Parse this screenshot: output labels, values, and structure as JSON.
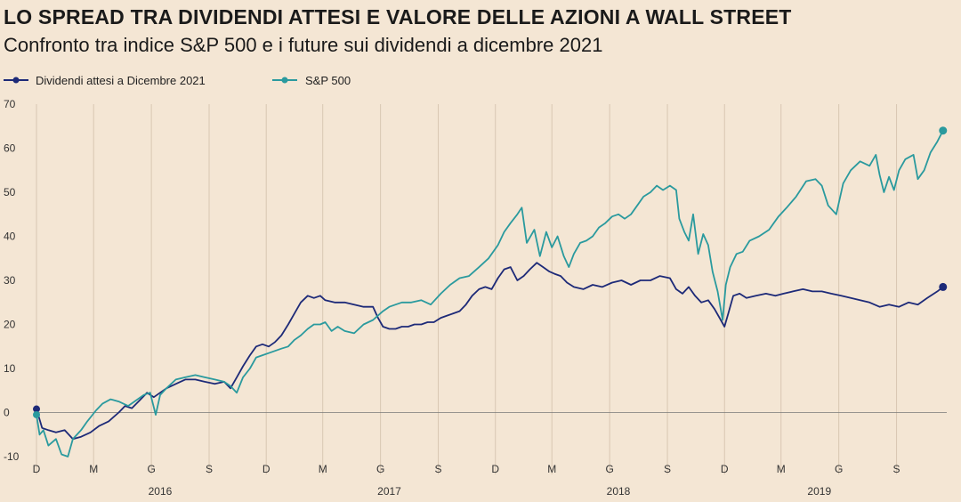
{
  "chart_data": {
    "type": "line",
    "title": "LO SPREAD TRA DIVIDENDI ATTESI E VALORE DELLE AZIONI A WALL STREET",
    "subtitle": "Confronto tra indice S&P 500 e i future sui dividendi a dicembre 2021",
    "ylim": [
      -10,
      70
    ],
    "y_ticks": [
      -10,
      0,
      10,
      20,
      30,
      40,
      50,
      60,
      70
    ],
    "x_range": [
      "2015-12-01",
      "2019-11-20"
    ],
    "x_ticks": [
      {
        "date": "2015-12-01",
        "label": "D"
      },
      {
        "date": "2016-03-01",
        "label": "M"
      },
      {
        "date": "2016-06-01",
        "label": "G"
      },
      {
        "date": "2016-09-01",
        "label": "S"
      },
      {
        "date": "2016-12-01",
        "label": "D"
      },
      {
        "date": "2017-03-01",
        "label": "M"
      },
      {
        "date": "2017-06-01",
        "label": "G"
      },
      {
        "date": "2017-09-01",
        "label": "S"
      },
      {
        "date": "2017-12-01",
        "label": "D"
      },
      {
        "date": "2018-03-01",
        "label": "M"
      },
      {
        "date": "2018-06-01",
        "label": "G"
      },
      {
        "date": "2018-09-01",
        "label": "S"
      },
      {
        "date": "2018-12-01",
        "label": "D"
      },
      {
        "date": "2019-03-01",
        "label": "M"
      },
      {
        "date": "2019-06-01",
        "label": "G"
      },
      {
        "date": "2019-09-01",
        "label": "S"
      }
    ],
    "year_labels": [
      {
        "date": "2016-06-15",
        "label": "2016"
      },
      {
        "date": "2017-06-15",
        "label": "2017"
      },
      {
        "date": "2018-06-15",
        "label": "2018"
      },
      {
        "date": "2019-05-01",
        "label": "2019"
      }
    ],
    "grid": "vertical",
    "legend_position": "top-left",
    "series": [
      {
        "name": "Dividendi attesi a Dicembre 2021",
        "color": "#1d2a78",
        "points": [
          [
            "2015-12-01",
            0.8
          ],
          [
            "2015-12-10",
            -3.5
          ],
          [
            "2015-12-20",
            -4.0
          ],
          [
            "2016-01-01",
            -4.5
          ],
          [
            "2016-01-15",
            -4.0
          ],
          [
            "2016-01-28",
            -6.0
          ],
          [
            "2016-02-10",
            -5.5
          ],
          [
            "2016-02-25",
            -4.5
          ],
          [
            "2016-03-10",
            -3.0
          ],
          [
            "2016-03-25",
            -2.0
          ],
          [
            "2016-04-10",
            0.0
          ],
          [
            "2016-04-20",
            1.5
          ],
          [
            "2016-05-01",
            1.0
          ],
          [
            "2016-05-15",
            3.0
          ],
          [
            "2016-05-25",
            4.5
          ],
          [
            "2016-06-05",
            3.5
          ],
          [
            "2016-06-15",
            4.5
          ],
          [
            "2016-06-25",
            5.5
          ],
          [
            "2016-07-10",
            6.5
          ],
          [
            "2016-07-25",
            7.5
          ],
          [
            "2016-08-10",
            7.5
          ],
          [
            "2016-08-25",
            7.0
          ],
          [
            "2016-09-10",
            6.5
          ],
          [
            "2016-09-25",
            7.0
          ],
          [
            "2016-10-05",
            5.5
          ],
          [
            "2016-10-15",
            8.0
          ],
          [
            "2016-10-25",
            10.5
          ],
          [
            "2016-11-05",
            13.0
          ],
          [
            "2016-11-15",
            15.0
          ],
          [
            "2016-11-25",
            15.5
          ],
          [
            "2016-12-05",
            15.0
          ],
          [
            "2016-12-15",
            16.0
          ],
          [
            "2016-12-25",
            17.5
          ],
          [
            "2017-01-05",
            20.0
          ],
          [
            "2017-01-15",
            22.5
          ],
          [
            "2017-01-25",
            25.0
          ],
          [
            "2017-02-05",
            26.5
          ],
          [
            "2017-02-15",
            26.0
          ],
          [
            "2017-02-25",
            26.5
          ],
          [
            "2017-03-05",
            25.5
          ],
          [
            "2017-03-20",
            25.0
          ],
          [
            "2017-04-05",
            25.0
          ],
          [
            "2017-04-20",
            24.5
          ],
          [
            "2017-05-05",
            24.0
          ],
          [
            "2017-05-20",
            24.0
          ],
          [
            "2017-05-28",
            21.5
          ],
          [
            "2017-06-05",
            19.5
          ],
          [
            "2017-06-15",
            19.0
          ],
          [
            "2017-06-25",
            19.0
          ],
          [
            "2017-07-05",
            19.5
          ],
          [
            "2017-07-15",
            19.5
          ],
          [
            "2017-07-25",
            20.0
          ],
          [
            "2017-08-05",
            20.0
          ],
          [
            "2017-08-15",
            20.5
          ],
          [
            "2017-08-25",
            20.5
          ],
          [
            "2017-09-05",
            21.5
          ],
          [
            "2017-09-15",
            22.0
          ],
          [
            "2017-09-25",
            22.5
          ],
          [
            "2017-10-05",
            23.0
          ],
          [
            "2017-10-15",
            24.5
          ],
          [
            "2017-10-25",
            26.5
          ],
          [
            "2017-11-05",
            28.0
          ],
          [
            "2017-11-15",
            28.5
          ],
          [
            "2017-11-25",
            28.0
          ],
          [
            "2017-12-05",
            30.5
          ],
          [
            "2017-12-15",
            32.5
          ],
          [
            "2017-12-25",
            33.0
          ],
          [
            "2018-01-05",
            30.0
          ],
          [
            "2018-01-15",
            31.0
          ],
          [
            "2018-01-25",
            32.5
          ],
          [
            "2018-02-05",
            34.0
          ],
          [
            "2018-02-15",
            33.0
          ],
          [
            "2018-02-25",
            32.0
          ],
          [
            "2018-03-05",
            31.5
          ],
          [
            "2018-03-15",
            31.0
          ],
          [
            "2018-03-25",
            29.5
          ],
          [
            "2018-04-05",
            28.5
          ],
          [
            "2018-04-20",
            28.0
          ],
          [
            "2018-05-05",
            29.0
          ],
          [
            "2018-05-20",
            28.5
          ],
          [
            "2018-06-05",
            29.5
          ],
          [
            "2018-06-20",
            30.0
          ],
          [
            "2018-07-05",
            29.0
          ],
          [
            "2018-07-20",
            30.0
          ],
          [
            "2018-08-05",
            30.0
          ],
          [
            "2018-08-20",
            31.0
          ],
          [
            "2018-09-05",
            30.5
          ],
          [
            "2018-09-15",
            28.0
          ],
          [
            "2018-09-25",
            27.0
          ],
          [
            "2018-10-05",
            28.5
          ],
          [
            "2018-10-15",
            26.5
          ],
          [
            "2018-10-25",
            25.0
          ],
          [
            "2018-11-05",
            25.5
          ],
          [
            "2018-11-15",
            23.5
          ],
          [
            "2018-11-25",
            21.0
          ],
          [
            "2018-12-01",
            19.5
          ],
          [
            "2018-12-08",
            23.0
          ],
          [
            "2018-12-15",
            26.5
          ],
          [
            "2018-12-25",
            27.0
          ],
          [
            "2019-01-05",
            26.0
          ],
          [
            "2019-01-20",
            26.5
          ],
          [
            "2019-02-05",
            27.0
          ],
          [
            "2019-02-20",
            26.5
          ],
          [
            "2019-03-05",
            27.0
          ],
          [
            "2019-03-20",
            27.5
          ],
          [
            "2019-04-05",
            28.0
          ],
          [
            "2019-04-20",
            27.5
          ],
          [
            "2019-05-05",
            27.5
          ],
          [
            "2019-05-20",
            27.0
          ],
          [
            "2019-06-05",
            26.5
          ],
          [
            "2019-06-20",
            26.0
          ],
          [
            "2019-07-05",
            25.5
          ],
          [
            "2019-07-20",
            25.0
          ],
          [
            "2019-08-05",
            24.0
          ],
          [
            "2019-08-20",
            24.5
          ],
          [
            "2019-09-05",
            24.0
          ],
          [
            "2019-09-20",
            25.0
          ],
          [
            "2019-10-05",
            24.5
          ],
          [
            "2019-10-20",
            26.0
          ],
          [
            "2019-11-05",
            27.5
          ],
          [
            "2019-11-14",
            28.5
          ]
        ]
      },
      {
        "name": "S&P 500",
        "color": "#2a9a9e",
        "points": [
          [
            "2015-12-01",
            -0.5
          ],
          [
            "2015-12-06",
            -5.0
          ],
          [
            "2015-12-12",
            -4.0
          ],
          [
            "2015-12-20",
            -7.5
          ],
          [
            "2016-01-01",
            -6.0
          ],
          [
            "2016-01-10",
            -9.5
          ],
          [
            "2016-01-20",
            -10.0
          ],
          [
            "2016-01-28",
            -6.0
          ],
          [
            "2016-02-10",
            -4.0
          ],
          [
            "2016-02-20",
            -2.0
          ],
          [
            "2016-03-05",
            0.5
          ],
          [
            "2016-03-15",
            2.0
          ],
          [
            "2016-03-28",
            3.0
          ],
          [
            "2016-04-10",
            2.5
          ],
          [
            "2016-04-25",
            1.5
          ],
          [
            "2016-05-05",
            2.5
          ],
          [
            "2016-05-20",
            4.0
          ],
          [
            "2016-05-30",
            4.5
          ],
          [
            "2016-06-08",
            -0.5
          ],
          [
            "2016-06-15",
            4.0
          ],
          [
            "2016-06-25",
            5.5
          ],
          [
            "2016-07-10",
            7.5
          ],
          [
            "2016-07-25",
            8.0
          ],
          [
            "2016-08-10",
            8.5
          ],
          [
            "2016-08-25",
            8.0
          ],
          [
            "2016-09-10",
            7.5
          ],
          [
            "2016-09-25",
            7.0
          ],
          [
            "2016-10-05",
            6.0
          ],
          [
            "2016-10-15",
            4.5
          ],
          [
            "2016-10-25",
            8.0
          ],
          [
            "2016-11-05",
            10.0
          ],
          [
            "2016-11-15",
            12.5
          ],
          [
            "2016-11-25",
            13.0
          ],
          [
            "2016-12-05",
            13.5
          ],
          [
            "2016-12-15",
            14.0
          ],
          [
            "2016-12-25",
            14.5
          ],
          [
            "2017-01-05",
            15.0
          ],
          [
            "2017-01-15",
            16.5
          ],
          [
            "2017-01-25",
            17.5
          ],
          [
            "2017-02-05",
            19.0
          ],
          [
            "2017-02-15",
            20.0
          ],
          [
            "2017-02-25",
            20.0
          ],
          [
            "2017-03-05",
            20.5
          ],
          [
            "2017-03-15",
            18.5
          ],
          [
            "2017-03-25",
            19.5
          ],
          [
            "2017-04-05",
            18.5
          ],
          [
            "2017-04-20",
            18.0
          ],
          [
            "2017-05-05",
            20.0
          ],
          [
            "2017-05-20",
            21.0
          ],
          [
            "2017-06-05",
            23.0
          ],
          [
            "2017-06-15",
            24.0
          ],
          [
            "2017-06-25",
            24.5
          ],
          [
            "2017-07-05",
            25.0
          ],
          [
            "2017-07-20",
            25.0
          ],
          [
            "2017-08-05",
            25.5
          ],
          [
            "2017-08-20",
            24.5
          ],
          [
            "2017-09-05",
            27.0
          ],
          [
            "2017-09-20",
            29.0
          ],
          [
            "2017-10-05",
            30.5
          ],
          [
            "2017-10-20",
            31.0
          ],
          [
            "2017-11-05",
            33.0
          ],
          [
            "2017-11-20",
            35.0
          ],
          [
            "2017-12-05",
            38.0
          ],
          [
            "2017-12-15",
            41.0
          ],
          [
            "2017-12-25",
            43.0
          ],
          [
            "2018-01-05",
            45.0
          ],
          [
            "2018-01-12",
            46.5
          ],
          [
            "2018-01-20",
            38.5
          ],
          [
            "2018-02-01",
            41.5
          ],
          [
            "2018-02-10",
            35.5
          ],
          [
            "2018-02-20",
            41.0
          ],
          [
            "2018-03-01",
            37.5
          ],
          [
            "2018-03-10",
            40.0
          ],
          [
            "2018-03-20",
            35.5
          ],
          [
            "2018-03-28",
            33.0
          ],
          [
            "2018-04-05",
            36.0
          ],
          [
            "2018-04-15",
            38.5
          ],
          [
            "2018-04-25",
            39.0
          ],
          [
            "2018-05-05",
            40.0
          ],
          [
            "2018-05-15",
            42.0
          ],
          [
            "2018-05-25",
            43.0
          ],
          [
            "2018-06-05",
            44.5
          ],
          [
            "2018-06-15",
            45.0
          ],
          [
            "2018-06-25",
            44.0
          ],
          [
            "2018-07-05",
            45.0
          ],
          [
            "2018-07-15",
            47.0
          ],
          [
            "2018-07-25",
            49.0
          ],
          [
            "2018-08-05",
            50.0
          ],
          [
            "2018-08-15",
            51.5
          ],
          [
            "2018-08-25",
            50.5
          ],
          [
            "2018-09-05",
            51.5
          ],
          [
            "2018-09-15",
            50.5
          ],
          [
            "2018-09-20",
            44.0
          ],
          [
            "2018-09-28",
            41.0
          ],
          [
            "2018-10-05",
            39.0
          ],
          [
            "2018-10-12",
            45.0
          ],
          [
            "2018-10-20",
            36.0
          ],
          [
            "2018-10-28",
            40.5
          ],
          [
            "2018-11-05",
            38.0
          ],
          [
            "2018-11-12",
            32.0
          ],
          [
            "2018-11-20",
            27.5
          ],
          [
            "2018-11-28",
            21.0
          ],
          [
            "2018-12-03",
            29.0
          ],
          [
            "2018-12-10",
            33.0
          ],
          [
            "2018-12-20",
            36.0
          ],
          [
            "2018-12-30",
            36.5
          ],
          [
            "2019-01-10",
            39.0
          ],
          [
            "2019-01-25",
            40.0
          ],
          [
            "2019-02-10",
            41.5
          ],
          [
            "2019-02-25",
            44.5
          ],
          [
            "2019-03-10",
            46.5
          ],
          [
            "2019-03-25",
            49.0
          ],
          [
            "2019-04-10",
            52.5
          ],
          [
            "2019-04-25",
            53.0
          ],
          [
            "2019-05-05",
            51.5
          ],
          [
            "2019-05-15",
            47.0
          ],
          [
            "2019-05-28",
            45.0
          ],
          [
            "2019-06-08",
            52.0
          ],
          [
            "2019-06-20",
            55.0
          ],
          [
            "2019-07-05",
            57.0
          ],
          [
            "2019-07-20",
            56.0
          ],
          [
            "2019-07-30",
            58.5
          ],
          [
            "2019-08-05",
            54.0
          ],
          [
            "2019-08-12",
            50.0
          ],
          [
            "2019-08-20",
            53.5
          ],
          [
            "2019-08-28",
            50.5
          ],
          [
            "2019-09-05",
            55.0
          ],
          [
            "2019-09-15",
            57.5
          ],
          [
            "2019-09-28",
            58.5
          ],
          [
            "2019-10-05",
            53.0
          ],
          [
            "2019-10-15",
            55.0
          ],
          [
            "2019-10-25",
            59.0
          ],
          [
            "2019-11-05",
            61.5
          ],
          [
            "2019-11-14",
            64.0
          ]
        ]
      }
    ]
  }
}
